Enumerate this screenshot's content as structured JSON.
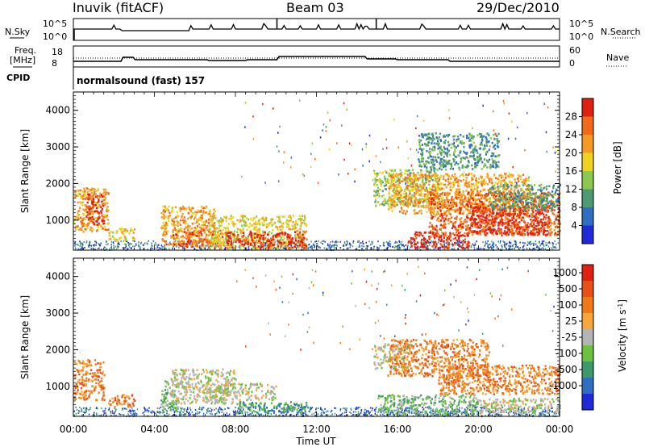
{
  "header": {
    "station": "Inuvik (fitACF)",
    "beam": "Beam 03",
    "date": "29/Dec/2010"
  },
  "status": {
    "left_labels": [
      "N.Sky",
      "Freq.",
      "[MHz]",
      "CPID"
    ],
    "right_labels": [
      "N.Search",
      "Nave"
    ],
    "nsky_ticks": [
      "10^5",
      "10^0"
    ],
    "nsearch_ticks": [
      "10^5",
      "10^0"
    ],
    "freq_ticks": [
      "18",
      "8"
    ],
    "nave_ticks": [
      "60",
      "0"
    ],
    "cpid_text": "normalsound (fast) 157",
    "freq_mhz": [
      [
        0,
        10
      ],
      [
        2.35,
        10
      ],
      [
        2.45,
        12.5
      ],
      [
        2.95,
        12.5
      ],
      [
        3.05,
        11
      ],
      [
        6.6,
        11
      ],
      [
        6.7,
        10.5
      ],
      [
        8.5,
        10.5
      ],
      [
        8.6,
        11
      ],
      [
        10.05,
        11
      ],
      [
        10.15,
        13
      ],
      [
        14.4,
        13
      ],
      [
        14.5,
        11.5
      ],
      [
        15.9,
        11.5
      ],
      [
        16,
        11
      ],
      [
        18.5,
        11
      ],
      [
        18.6,
        10
      ],
      [
        24,
        10
      ]
    ],
    "nave": [
      [
        0,
        24
      ],
      [
        24,
        24
      ]
    ]
  },
  "chart_data": [
    {
      "type": "heatmap",
      "title": "Power",
      "ylabel": "Slant Range [km]",
      "colorbar_label": "Power [dB]",
      "colorbar_ticks": [
        "4",
        "8",
        "12",
        "16",
        "20",
        "24",
        "28"
      ],
      "colors": [
        "#1f2bd6",
        "#2e6fbf",
        "#4f9a72",
        "#8cc84d",
        "#f0d020",
        "#f59a25",
        "#f06a18",
        "#e02010"
      ],
      "x_range_hours": [
        0,
        24
      ],
      "y_range_km": [
        180,
        4500
      ],
      "y_ticks": [
        1000,
        2000,
        3000,
        4000
      ],
      "regions": [
        {
          "t0": 0.0,
          "t1": 1.7,
          "r0": 700,
          "r1": 1900,
          "level": 5
        },
        {
          "t0": 0.6,
          "t1": 1.5,
          "r0": 900,
          "r1": 1750,
          "level": 7
        },
        {
          "t0": 1.7,
          "t1": 3.0,
          "r0": 450,
          "r1": 800,
          "level": 4
        },
        {
          "t0": 4.3,
          "t1": 7.0,
          "r0": 300,
          "r1": 1400,
          "level": 5
        },
        {
          "t0": 4.8,
          "t1": 7.8,
          "r0": 300,
          "r1": 750,
          "level": 6
        },
        {
          "t0": 6.7,
          "t1": 11.5,
          "r0": 250,
          "r1": 1150,
          "level": 4
        },
        {
          "t0": 7.5,
          "t1": 11.5,
          "r0": 250,
          "r1": 700,
          "level": 7
        },
        {
          "t0": 14.8,
          "t1": 18.0,
          "r0": 1400,
          "r1": 2400,
          "level": 3
        },
        {
          "t0": 15.5,
          "t1": 22.5,
          "r0": 1200,
          "r1": 2300,
          "level": 5
        },
        {
          "t0": 17.5,
          "t1": 24.0,
          "r0": 600,
          "r1": 1800,
          "level": 6
        },
        {
          "t0": 19.5,
          "t1": 23.5,
          "r0": 600,
          "r1": 1400,
          "level": 7
        },
        {
          "t0": 20.5,
          "t1": 24.0,
          "r0": 1300,
          "r1": 2000,
          "level": 2
        },
        {
          "t0": 16.5,
          "t1": 19.5,
          "r0": 250,
          "r1": 700,
          "level": 7
        },
        {
          "t0": 17.0,
          "t1": 21.0,
          "r0": 2400,
          "r1": 3400,
          "level": 2
        }
      ]
    },
    {
      "type": "heatmap",
      "title": "Velocity",
      "ylabel": "Slant Range [km]",
      "xlabel": "Time UT",
      "colorbar_label": "Velocity [m s^-1]",
      "colorbar_ticks": [
        "1000",
        "500",
        "100",
        "25",
        "-25",
        "-100",
        "-500",
        "-1000"
      ],
      "colors": [
        "#1f2bd6",
        "#2e6fbf",
        "#3f9a6a",
        "#6cc23f",
        "#b4b4b4",
        "#f6a63a",
        "#f07a18",
        "#e8501a",
        "#e02010"
      ],
      "x_range_hours": [
        0,
        24
      ],
      "x_ticks": [
        "00:00",
        "04:00",
        "08:00",
        "12:00",
        "16:00",
        "20:00",
        "00:00"
      ],
      "y_range_km": [
        180,
        4500
      ],
      "y_ticks": [
        1000,
        2000,
        3000,
        4000
      ],
      "regions": [
        {
          "t0": 0.0,
          "t1": 1.5,
          "r0": 650,
          "r1": 1750,
          "level": 6
        },
        {
          "t0": 1.7,
          "t1": 3.0,
          "r0": 450,
          "r1": 800,
          "level": 6
        },
        {
          "t0": 4.3,
          "t1": 5.2,
          "r0": 350,
          "r1": 1200,
          "level": 3
        },
        {
          "t0": 4.8,
          "t1": 8.0,
          "r0": 550,
          "r1": 1500,
          "level": 4
        },
        {
          "t0": 6.5,
          "t1": 10.0,
          "r0": 650,
          "r1": 1100,
          "level": 4
        },
        {
          "t0": 8.0,
          "t1": 11.5,
          "r0": 300,
          "r1": 600,
          "level": 2
        },
        {
          "t0": 14.8,
          "t1": 16.5,
          "r0": 1500,
          "r1": 2200,
          "level": 4
        },
        {
          "t0": 15.5,
          "t1": 20.5,
          "r0": 1300,
          "r1": 2300,
          "level": 6
        },
        {
          "t0": 18.0,
          "t1": 24.0,
          "r0": 800,
          "r1": 1600,
          "level": 6
        },
        {
          "t0": 15.0,
          "t1": 20.0,
          "r0": 250,
          "r1": 800,
          "level": 3
        },
        {
          "t0": 20.0,
          "t1": 24.0,
          "r0": 300,
          "r1": 700,
          "level": 4
        }
      ]
    }
  ]
}
